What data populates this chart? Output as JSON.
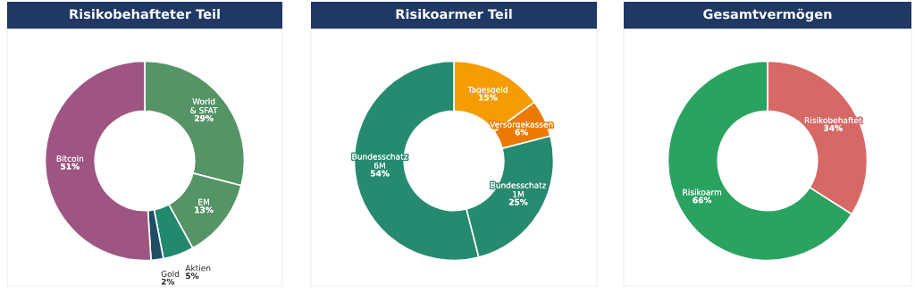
{
  "chart_data": [
    {
      "type": "donut",
      "title": "Risikobehafteter Teil",
      "categories": [
        "World\n& SFAT",
        "EM",
        "Aktien",
        "Gold",
        "Bitcoin"
      ],
      "values": [
        29,
        13,
        5,
        2,
        51
      ],
      "value_labels": [
        "29%",
        "13%",
        "5%",
        "2%",
        "51%"
      ],
      "colors": [
        "#559466",
        "#559466",
        "#22886e",
        "#1f4e66",
        "#9e5582"
      ]
    },
    {
      "type": "donut",
      "title": "Risikoarmer Teil",
      "categories": [
        "Tagesgeld",
        "Versorgekassen",
        "Bundesschatz\n1M",
        "Bundesschatz\n6M"
      ],
      "values": [
        15,
        6,
        25,
        54
      ],
      "value_labels": [
        "15%",
        "6%",
        "25%",
        "54%"
      ],
      "colors": [
        "#f59c00",
        "#ec7a00",
        "#268a70",
        "#268a70"
      ]
    },
    {
      "type": "donut",
      "title": "Gesamtvermögen",
      "categories": [
        "Risikobehaftet",
        "Risikoarm"
      ],
      "values": [
        34,
        66
      ],
      "value_labels": [
        "34%",
        "66%"
      ],
      "colors": [
        "#d66966",
        "#2aa360"
      ]
    }
  ]
}
